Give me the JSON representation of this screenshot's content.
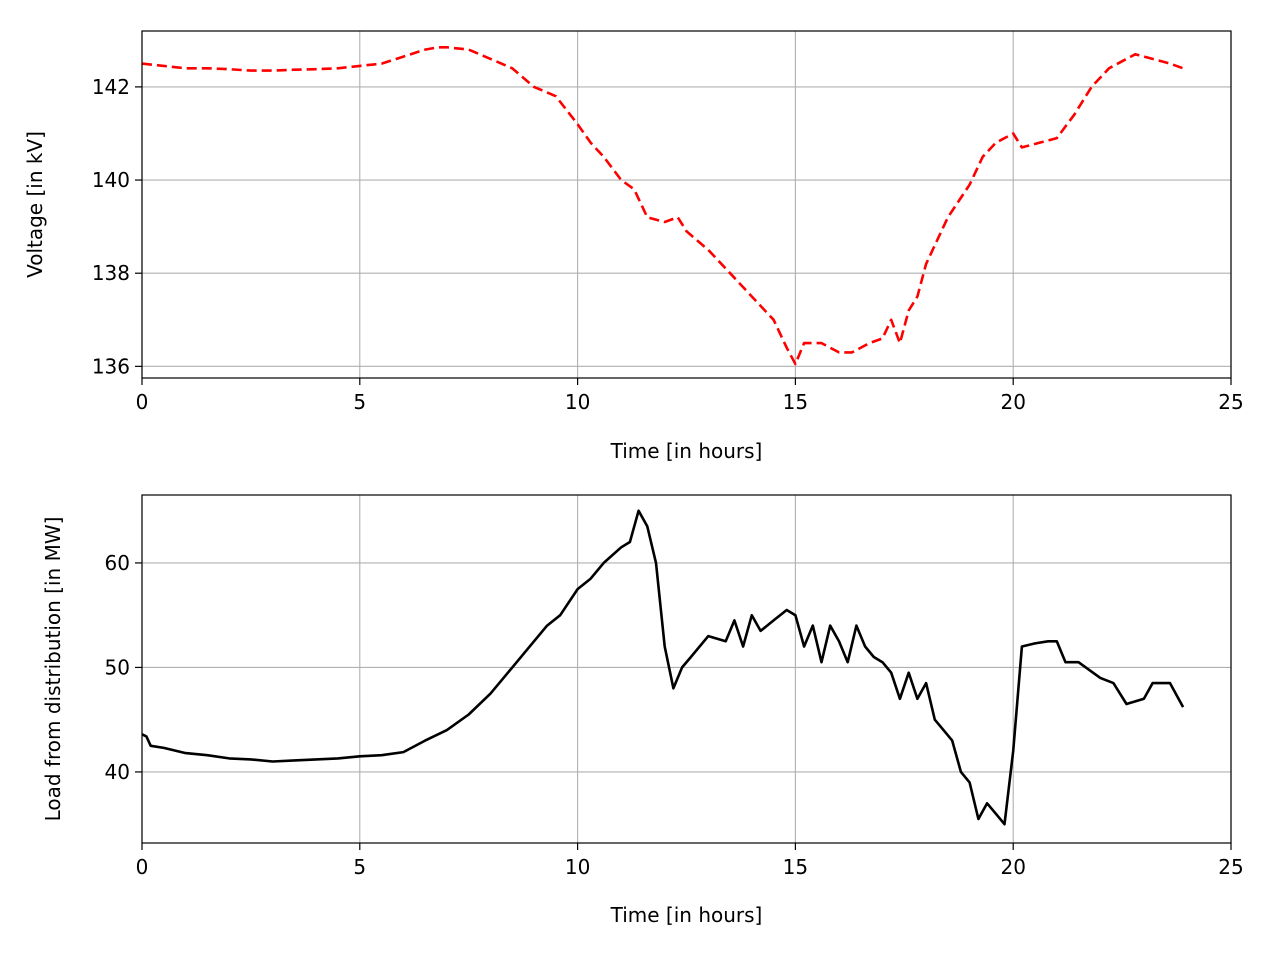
{
  "chart_data": [
    {
      "type": "line",
      "xlabel": "Time [in hours]",
      "ylabel": "Voltage [in kV]",
      "xlim": [
        0,
        25
      ],
      "ylim": [
        135.75,
        143.2
      ],
      "xticks": [
        0,
        5,
        10,
        15,
        20,
        25
      ],
      "yticks": [
        136,
        138,
        140,
        142
      ],
      "grid": true,
      "series": [
        {
          "color": "#ff0000",
          "linestyle": "dashed",
          "x": [
            0,
            0.5,
            1,
            1.5,
            2,
            2.5,
            3,
            3.5,
            4,
            4.5,
            5,
            5.5,
            6,
            6.5,
            6.8,
            7,
            7.5,
            8,
            8.5,
            9,
            9.5,
            10,
            10.3,
            10.6,
            11,
            11.3,
            11.6,
            12,
            12.3,
            12.5,
            13,
            13.5,
            14,
            14.5,
            14.8,
            15,
            15.2,
            15.6,
            16,
            16.3,
            16.7,
            17,
            17.2,
            17.4,
            17.6,
            17.8,
            18,
            18.5,
            19,
            19.3,
            19.6,
            20,
            20.2,
            20.6,
            21,
            21.4,
            21.8,
            22.2,
            22.6,
            22.8,
            23.2,
            23.6,
            23.9
          ],
          "y": [
            142.5,
            142.45,
            142.4,
            142.4,
            142.38,
            142.35,
            142.35,
            142.37,
            142.38,
            142.4,
            142.45,
            142.5,
            142.65,
            142.8,
            142.85,
            142.85,
            142.8,
            142.6,
            142.4,
            142.0,
            141.8,
            141.2,
            140.8,
            140.5,
            140.0,
            139.8,
            139.2,
            139.1,
            139.2,
            138.9,
            138.5,
            138.0,
            137.5,
            137.0,
            136.4,
            136.05,
            136.5,
            136.5,
            136.3,
            136.3,
            136.5,
            136.6,
            137.0,
            136.5,
            137.2,
            137.5,
            138.2,
            139.2,
            139.9,
            140.5,
            140.8,
            141.0,
            140.7,
            140.8,
            140.9,
            141.4,
            142.0,
            142.4,
            142.6,
            142.7,
            142.6,
            142.5,
            142.4
          ]
        }
      ]
    },
    {
      "type": "line",
      "xlabel": "Time [in hours]",
      "ylabel": "Load from distribution [in MW]",
      "xlim": [
        0,
        25
      ],
      "ylim": [
        33.2,
        66.5
      ],
      "xticks": [
        0,
        5,
        10,
        15,
        20,
        25
      ],
      "yticks": [
        40,
        50,
        60
      ],
      "grid": true,
      "series": [
        {
          "color": "#000000",
          "linestyle": "solid",
          "x": [
            0,
            0.1,
            0.2,
            0.5,
            1,
            1.5,
            2,
            2.5,
            3,
            3.5,
            4,
            4.5,
            5,
            5.5,
            6,
            6.5,
            7,
            7.5,
            8,
            8.5,
            9,
            9.3,
            9.6,
            10,
            10.3,
            10.6,
            11,
            11.2,
            11.4,
            11.6,
            11.8,
            12,
            12.2,
            12.4,
            12.6,
            13,
            13.4,
            13.6,
            13.8,
            14,
            14.2,
            14.5,
            14.8,
            15,
            15.2,
            15.4,
            15.6,
            15.8,
            16,
            16.2,
            16.4,
            16.6,
            16.8,
            17,
            17.2,
            17.4,
            17.6,
            17.8,
            18,
            18.2,
            18.4,
            18.6,
            18.8,
            19,
            19.2,
            19.4,
            19.6,
            19.8,
            20,
            20.2,
            20.5,
            20.8,
            21,
            21.2,
            21.5,
            22,
            22.3,
            22.6,
            23,
            23.2,
            23.4,
            23.6,
            23.9
          ],
          "y": [
            43.6,
            43.4,
            42.5,
            42.3,
            41.8,
            41.6,
            41.3,
            41.2,
            41.0,
            41.1,
            41.2,
            41.3,
            41.5,
            41.6,
            41.9,
            43.0,
            44.0,
            45.5,
            47.5,
            50.0,
            52.5,
            54.0,
            55.0,
            57.5,
            58.5,
            60.0,
            61.5,
            62.0,
            65.0,
            63.5,
            60.0,
            52.0,
            48.0,
            50.0,
            51.0,
            53.0,
            52.5,
            54.5,
            52.0,
            55.0,
            53.5,
            54.5,
            55.5,
            55.0,
            52.0,
            54.0,
            50.5,
            54.0,
            52.5,
            50.5,
            54.0,
            52.0,
            51.0,
            50.5,
            49.5,
            47.0,
            49.5,
            47.0,
            48.5,
            45.0,
            44.0,
            43.0,
            40.0,
            39.0,
            35.5,
            37.0,
            36.0,
            35.0,
            42.0,
            52.0,
            52.3,
            52.5,
            52.5,
            50.5,
            50.5,
            49.0,
            48.5,
            46.5,
            47.0,
            48.5,
            48.5,
            48.5,
            46.2
          ]
        }
      ]
    }
  ]
}
